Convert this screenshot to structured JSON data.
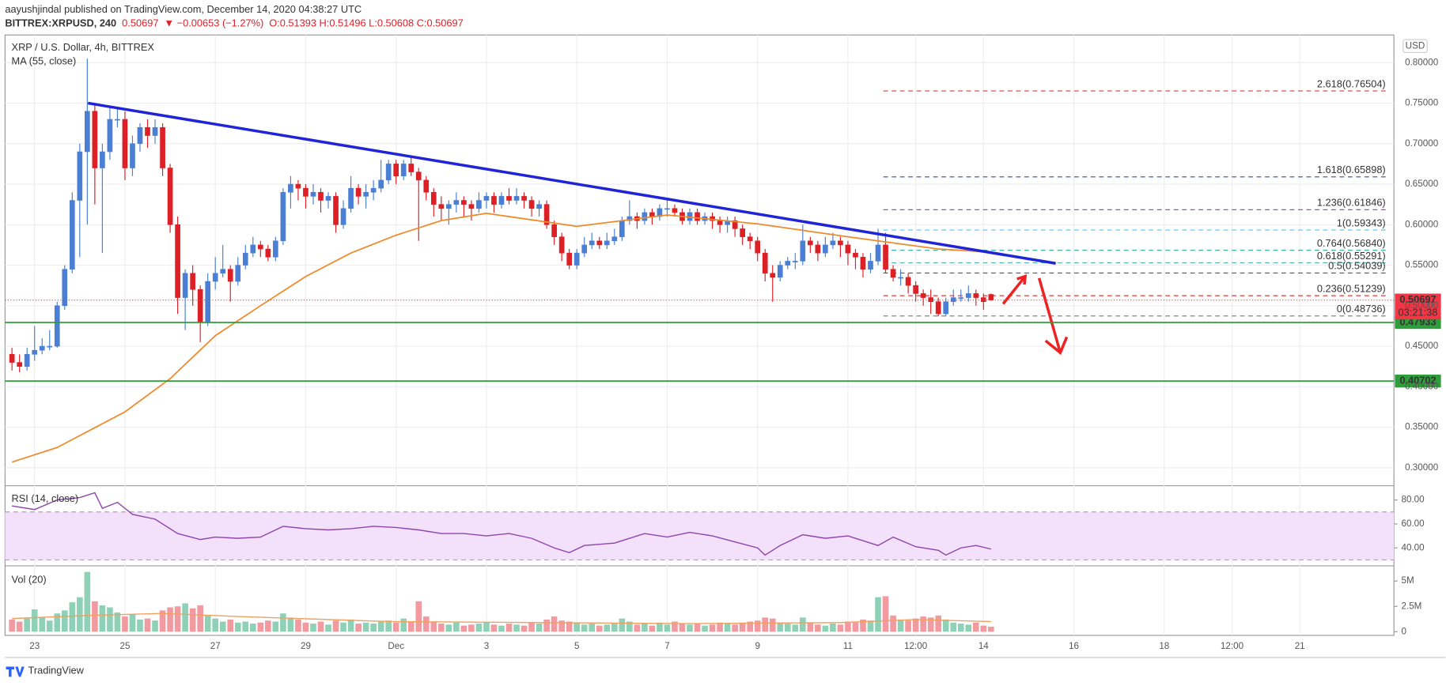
{
  "header": {
    "publisher": "aayushjindal published on TradingView.com, December 14, 2020 04:38:27 UTC",
    "symbol": "BITTREX:XRPUSD, 240",
    "last": "0.50697",
    "change": "▼ −0.00653 (−1.27%)",
    "ohlc_text": "O:0.51393 H:0.51496 L:0.50608 C:0.50697"
  },
  "footer": "TradingView",
  "chart_data": {
    "type": "candlestick",
    "title": "XRP / U.S. Dollar, 4h, BITTREX",
    "currency": "USD",
    "up_color": "#4a7fd4",
    "down_color": "#dd1f26",
    "grid": true,
    "xlim": [
      -0.92,
      183.5
    ],
    "xticks": [
      {
        "value": 3,
        "label": "23"
      },
      {
        "value": 15,
        "label": "25"
      },
      {
        "value": 27,
        "label": "27"
      },
      {
        "value": 39,
        "label": "29"
      },
      {
        "value": 51,
        "label": "Dec"
      },
      {
        "value": 63,
        "label": "3"
      },
      {
        "value": 75,
        "label": "5"
      },
      {
        "value": 87,
        "label": "7"
      },
      {
        "value": 99,
        "label": "9"
      },
      {
        "value": 111,
        "label": "11"
      },
      {
        "value": 120,
        "label": "12:00"
      },
      {
        "value": 129,
        "label": "14"
      },
      {
        "value": 141,
        "label": "16"
      },
      {
        "value": 153,
        "label": "18"
      },
      {
        "value": 162,
        "label": "12:00"
      },
      {
        "value": 171,
        "label": "21"
      }
    ],
    "ylim": [
      0.2784,
      0.8341
    ],
    "yticks": [
      {
        "value": 0.3,
        "label": "0.30000"
      },
      {
        "value": 0.35,
        "label": "0.35000"
      },
      {
        "value": 0.4,
        "label": "0.40000"
      },
      {
        "value": 0.45,
        "label": "0.45000"
      },
      {
        "value": 0.5,
        "label": "0.50000"
      },
      {
        "value": 0.55,
        "label": "0.55000"
      },
      {
        "value": 0.6,
        "label": "0.60000"
      },
      {
        "value": 0.65,
        "label": "0.65000"
      },
      {
        "value": 0.7,
        "label": "0.70000"
      },
      {
        "value": 0.75,
        "label": "0.75000"
      },
      {
        "value": 0.8,
        "label": "0.80000"
      }
    ],
    "ohlc": [
      [
        0.44,
        0.448,
        0.42,
        0.43
      ],
      [
        0.43,
        0.44,
        0.418,
        0.425
      ],
      [
        0.425,
        0.448,
        0.42,
        0.44
      ],
      [
        0.44,
        0.475,
        0.432,
        0.445
      ],
      [
        0.445,
        0.46,
        0.44,
        0.45
      ],
      [
        0.45,
        0.47,
        0.445,
        0.45
      ],
      [
        0.45,
        0.505,
        0.448,
        0.5
      ],
      [
        0.5,
        0.55,
        0.495,
        0.545
      ],
      [
        0.545,
        0.64,
        0.54,
        0.63
      ],
      [
        0.63,
        0.7,
        0.56,
        0.69
      ],
      [
        0.69,
        0.805,
        0.6,
        0.74
      ],
      [
        0.74,
        0.75,
        0.625,
        0.67
      ],
      [
        0.67,
        0.7,
        0.565,
        0.69
      ],
      [
        0.69,
        0.745,
        0.68,
        0.73
      ],
      [
        0.73,
        0.745,
        0.72,
        0.73
      ],
      [
        0.73,
        0.74,
        0.655,
        0.67
      ],
      [
        0.67,
        0.71,
        0.66,
        0.7
      ],
      [
        0.7,
        0.725,
        0.69,
        0.72
      ],
      [
        0.72,
        0.73,
        0.695,
        0.71
      ],
      [
        0.71,
        0.73,
        0.7,
        0.72
      ],
      [
        0.72,
        0.725,
        0.66,
        0.67
      ],
      [
        0.67,
        0.675,
        0.59,
        0.6
      ],
      [
        0.6,
        0.61,
        0.49,
        0.51
      ],
      [
        0.51,
        0.545,
        0.47,
        0.54
      ],
      [
        0.54,
        0.55,
        0.5,
        0.52
      ],
      [
        0.52,
        0.525,
        0.455,
        0.48
      ],
      [
        0.48,
        0.54,
        0.475,
        0.53
      ],
      [
        0.53,
        0.56,
        0.52,
        0.54
      ],
      [
        0.54,
        0.575,
        0.535,
        0.545
      ],
      [
        0.545,
        0.55,
        0.505,
        0.53
      ],
      [
        0.53,
        0.56,
        0.525,
        0.55
      ],
      [
        0.55,
        0.575,
        0.545,
        0.565
      ],
      [
        0.565,
        0.585,
        0.56,
        0.575
      ],
      [
        0.575,
        0.58,
        0.56,
        0.57
      ],
      [
        0.57,
        0.575,
        0.555,
        0.56
      ],
      [
        0.56,
        0.585,
        0.555,
        0.58
      ],
      [
        0.58,
        0.645,
        0.575,
        0.64
      ],
      [
        0.64,
        0.66,
        0.62,
        0.65
      ],
      [
        0.65,
        0.655,
        0.63,
        0.645
      ],
      [
        0.645,
        0.65,
        0.62,
        0.635
      ],
      [
        0.635,
        0.65,
        0.625,
        0.64
      ],
      [
        0.64,
        0.645,
        0.615,
        0.63
      ],
      [
        0.63,
        0.64,
        0.62,
        0.635
      ],
      [
        0.635,
        0.64,
        0.59,
        0.6
      ],
      [
        0.6,
        0.63,
        0.595,
        0.62
      ],
      [
        0.62,
        0.66,
        0.615,
        0.645
      ],
      [
        0.645,
        0.65,
        0.625,
        0.635
      ],
      [
        0.635,
        0.65,
        0.62,
        0.64
      ],
      [
        0.64,
        0.655,
        0.63,
        0.645
      ],
      [
        0.645,
        0.68,
        0.64,
        0.655
      ],
      [
        0.655,
        0.68,
        0.65,
        0.675
      ],
      [
        0.675,
        0.68,
        0.65,
        0.66
      ],
      [
        0.66,
        0.68,
        0.655,
        0.675
      ],
      [
        0.675,
        0.685,
        0.66,
        0.665
      ],
      [
        0.665,
        0.67,
        0.58,
        0.655
      ],
      [
        0.655,
        0.66,
        0.63,
        0.64
      ],
      [
        0.64,
        0.645,
        0.61,
        0.625
      ],
      [
        0.625,
        0.635,
        0.605,
        0.62
      ],
      [
        0.62,
        0.63,
        0.6,
        0.625
      ],
      [
        0.625,
        0.64,
        0.615,
        0.63
      ],
      [
        0.63,
        0.635,
        0.61,
        0.625
      ],
      [
        0.625,
        0.63,
        0.605,
        0.62
      ],
      [
        0.62,
        0.64,
        0.615,
        0.63
      ],
      [
        0.63,
        0.64,
        0.62,
        0.635
      ],
      [
        0.635,
        0.64,
        0.615,
        0.625
      ],
      [
        0.625,
        0.64,
        0.62,
        0.635
      ],
      [
        0.635,
        0.645,
        0.625,
        0.63
      ],
      [
        0.63,
        0.645,
        0.625,
        0.635
      ],
      [
        0.635,
        0.64,
        0.62,
        0.63
      ],
      [
        0.63,
        0.635,
        0.61,
        0.62
      ],
      [
        0.62,
        0.63,
        0.61,
        0.625
      ],
      [
        0.625,
        0.63,
        0.595,
        0.6
      ],
      [
        0.6,
        0.605,
        0.575,
        0.585
      ],
      [
        0.585,
        0.59,
        0.555,
        0.565
      ],
      [
        0.565,
        0.57,
        0.545,
        0.55
      ],
      [
        0.55,
        0.57,
        0.545,
        0.565
      ],
      [
        0.565,
        0.585,
        0.56,
        0.575
      ],
      [
        0.575,
        0.59,
        0.57,
        0.58
      ],
      [
        0.58,
        0.585,
        0.57,
        0.575
      ],
      [
        0.575,
        0.59,
        0.57,
        0.58
      ],
      [
        0.58,
        0.595,
        0.575,
        0.585
      ],
      [
        0.585,
        0.61,
        0.58,
        0.605
      ],
      [
        0.605,
        0.63,
        0.6,
        0.61
      ],
      [
        0.61,
        0.615,
        0.595,
        0.605
      ],
      [
        0.605,
        0.62,
        0.6,
        0.615
      ],
      [
        0.615,
        0.62,
        0.6,
        0.61
      ],
      [
        0.61,
        0.625,
        0.605,
        0.62
      ],
      [
        0.62,
        0.63,
        0.61,
        0.62
      ],
      [
        0.62,
        0.625,
        0.61,
        0.615
      ],
      [
        0.615,
        0.62,
        0.6,
        0.605
      ],
      [
        0.605,
        0.62,
        0.6,
        0.615
      ],
      [
        0.615,
        0.62,
        0.6,
        0.605
      ],
      [
        0.605,
        0.615,
        0.6,
        0.61
      ],
      [
        0.61,
        0.615,
        0.595,
        0.605
      ],
      [
        0.605,
        0.61,
        0.59,
        0.6
      ],
      [
        0.6,
        0.61,
        0.59,
        0.605
      ],
      [
        0.605,
        0.61,
        0.585,
        0.595
      ],
      [
        0.595,
        0.6,
        0.575,
        0.585
      ],
      [
        0.585,
        0.59,
        0.57,
        0.58
      ],
      [
        0.58,
        0.585,
        0.555,
        0.565
      ],
      [
        0.565,
        0.57,
        0.53,
        0.54
      ],
      [
        0.54,
        0.55,
        0.505,
        0.535
      ],
      [
        0.535,
        0.555,
        0.53,
        0.55
      ],
      [
        0.55,
        0.56,
        0.545,
        0.555
      ],
      [
        0.555,
        0.565,
        0.545,
        0.555
      ],
      [
        0.555,
        0.6,
        0.55,
        0.58
      ],
      [
        0.58,
        0.585,
        0.565,
        0.575
      ],
      [
        0.575,
        0.58,
        0.555,
        0.565
      ],
      [
        0.565,
        0.585,
        0.56,
        0.575
      ],
      [
        0.575,
        0.59,
        0.57,
        0.58
      ],
      [
        0.58,
        0.585,
        0.56,
        0.575
      ],
      [
        0.575,
        0.58,
        0.55,
        0.565
      ],
      [
        0.565,
        0.57,
        0.545,
        0.56
      ],
      [
        0.56,
        0.565,
        0.535,
        0.545
      ],
      [
        0.545,
        0.565,
        0.54,
        0.555
      ],
      [
        0.555,
        0.595,
        0.55,
        0.575
      ],
      [
        0.575,
        0.59,
        0.54,
        0.545
      ],
      [
        0.545,
        0.55,
        0.53,
        0.535
      ],
      [
        0.535,
        0.545,
        0.525,
        0.535
      ],
      [
        0.535,
        0.54,
        0.515,
        0.525
      ],
      [
        0.525,
        0.53,
        0.505,
        0.515
      ],
      [
        0.515,
        0.52,
        0.5,
        0.51
      ],
      [
        0.51,
        0.52,
        0.49,
        0.505
      ],
      [
        0.505,
        0.51,
        0.487,
        0.49
      ],
      [
        0.49,
        0.51,
        0.487,
        0.505
      ],
      [
        0.505,
        0.52,
        0.5,
        0.51
      ],
      [
        0.51,
        0.52,
        0.505,
        0.51
      ],
      [
        0.51,
        0.525,
        0.505,
        0.515
      ],
      [
        0.515,
        0.52,
        0.5,
        0.51
      ],
      [
        0.51,
        0.515,
        0.495,
        0.505
      ],
      [
        0.51393,
        0.51496,
        0.50608,
        0.50697
      ]
    ],
    "ma": {
      "name": "MA (55, close)",
      "color": "#f0892a",
      "x": [
        0,
        6,
        15,
        21,
        27,
        33,
        39,
        45,
        51,
        57,
        63,
        75,
        87,
        99,
        111,
        123,
        130
      ],
      "values": [
        0.307,
        0.325,
        0.369,
        0.41,
        0.463,
        0.5,
        0.536,
        0.565,
        0.587,
        0.605,
        0.614,
        0.598,
        0.612,
        0.601,
        0.585,
        0.57,
        0.566
      ]
    },
    "levels": [
      {
        "label": "2.618(0.76504)",
        "value": 0.76504,
        "color": "#e53935"
      },
      {
        "label": "1.618(0.65898)",
        "value": 0.65898,
        "color": "#3949ab"
      },
      {
        "label": "1.236(0.61846)",
        "value": 0.61846,
        "color": "#ab47bc"
      },
      {
        "label": "1(0.59343)",
        "value": 0.59343,
        "color": "#4fc3f7"
      },
      {
        "label": "0.764(0.56840)",
        "value": 0.5684,
        "color": "#26a69a"
      },
      {
        "label": "0.618(0.55291)",
        "value": 0.55291,
        "color": "#4db6ac"
      },
      {
        "label": "0.5(0.54039)",
        "value": 0.54039,
        "color": "#555555"
      },
      {
        "label": "0.236(0.51239)",
        "value": 0.51239,
        "color": "#e53935"
      },
      {
        "label": "0(0.48736)",
        "value": 0.48736,
        "color": "#777777"
      }
    ],
    "support_lines": [
      {
        "value": 0.47933,
        "label": "0.47933",
        "color": "#2e9e3a"
      },
      {
        "value": 0.40702,
        "label": "0.40702",
        "color": "#2e9e3a"
      }
    ],
    "last_price": {
      "value": 0.50697,
      "label": "0.50697",
      "countdown": "03:21:38",
      "color": "#f23645"
    },
    "rsi": {
      "name": "RSI (14, close)",
      "color": "#8e44ad",
      "band_color": "#f3e0fa",
      "ylim": [
        25.4,
        91.5
      ],
      "band": [
        30,
        70
      ],
      "yticks": [
        {
          "value": 40,
          "label": "40.00"
        },
        {
          "value": 60,
          "label": "60.00"
        },
        {
          "value": 80,
          "label": "80.00"
        }
      ],
      "x": [
        0,
        3,
        6,
        9,
        11,
        12,
        14,
        16,
        19,
        22,
        25,
        27,
        30,
        33,
        36,
        39,
        42,
        45,
        48,
        51,
        54,
        57,
        60,
        63,
        66,
        69,
        72,
        74,
        76,
        80,
        84,
        87,
        90,
        93,
        96,
        99,
        100,
        102,
        105,
        108,
        111,
        114,
        115,
        117,
        120,
        123,
        124,
        126,
        128,
        130
      ],
      "values": [
        75,
        72,
        80,
        82,
        86,
        73,
        78,
        68,
        64,
        52,
        47,
        49,
        48,
        49,
        58,
        56,
        55,
        56,
        58,
        57,
        55,
        52,
        52,
        50,
        52,
        48,
        40,
        36,
        42,
        44,
        52,
        49,
        53,
        50,
        45,
        40,
        34,
        42,
        51,
        48,
        50,
        44,
        42,
        49,
        41,
        38,
        34,
        40,
        42,
        39
      ]
    },
    "volume": {
      "name": "Vol (20)",
      "up_color": "#8fd1b6",
      "down_color": "#f19aa0",
      "ma_color": "#f0a060",
      "ylim": [
        -0.36,
        6.45
      ],
      "yticks": [
        0,
        {
          "value": 2.5,
          "label": "2.5M"
        },
        {
          "value": 5,
          "label": "5M"
        }
      ],
      "values": [
        1.2,
        1.0,
        1.3,
        2.2,
        1.4,
        1.1,
        1.8,
        2.1,
        2.9,
        3.4,
        5.9,
        3.0,
        2.6,
        2.4,
        1.9,
        1.5,
        1.7,
        1.2,
        1.3,
        1.1,
        2.1,
        2.4,
        2.5,
        2.8,
        2.3,
        2.6,
        1.6,
        1.3,
        1.0,
        1.2,
        0.9,
        1.0,
        0.8,
        0.9,
        1.1,
        1.0,
        1.8,
        1.4,
        1.2,
        0.9,
        0.8,
        1.0,
        0.7,
        1.1,
        0.9,
        1.2,
        0.8,
        0.9,
        0.8,
        1.0,
        1.1,
        0.9,
        1.3,
        1.0,
        3.0,
        1.5,
        1.0,
        0.8,
        0.7,
        0.9,
        0.6,
        0.7,
        0.8,
        0.9,
        0.7,
        0.6,
        0.8,
        0.7,
        0.6,
        0.9,
        0.8,
        1.2,
        1.5,
        1.1,
        1.0,
        0.9,
        0.7,
        0.8,
        0.6,
        0.7,
        0.8,
        1.3,
        1.0,
        0.7,
        0.8,
        0.6,
        0.9,
        0.7,
        1.0,
        0.8,
        0.7,
        0.8,
        0.6,
        0.7,
        0.9,
        0.8,
        0.7,
        0.9,
        1.0,
        1.1,
        1.4,
        1.3,
        0.9,
        0.8,
        0.7,
        1.4,
        0.9,
        0.7,
        0.6,
        0.8,
        0.7,
        1.0,
        0.9,
        1.2,
        1.1,
        3.4,
        3.5,
        1.6,
        1.2,
        1.1,
        1.3,
        1.5,
        1.4,
        1.6,
        1.2,
        0.9,
        0.8,
        0.7,
        0.9,
        0.6,
        0.5
      ],
      "ma_x": [
        0,
        10,
        20,
        30,
        50,
        70,
        90,
        110,
        120,
        130
      ],
      "ma": [
        1.3,
        1.6,
        1.8,
        1.5,
        1.0,
        0.9,
        0.8,
        0.9,
        1.2,
        1.0
      ]
    }
  }
}
